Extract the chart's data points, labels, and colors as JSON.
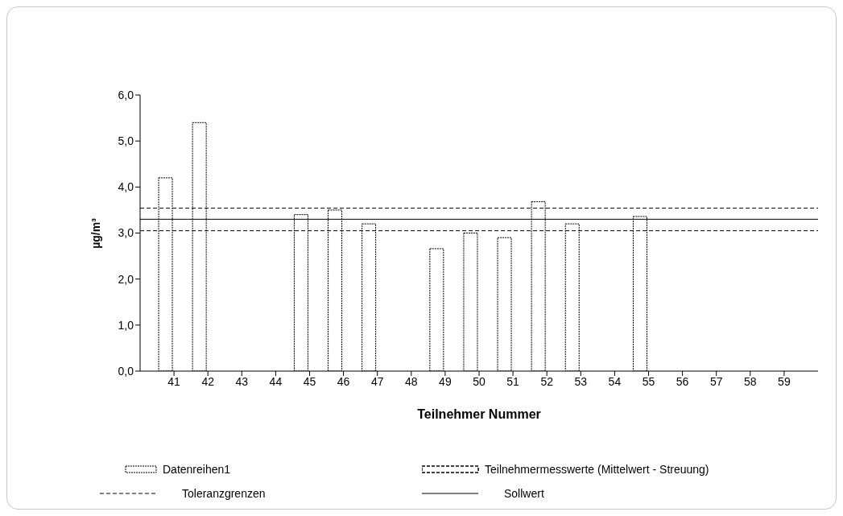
{
  "chart_data": {
    "type": "bar",
    "xlabel": "Teilnehmer Nummer",
    "ylabel": "µg/m³",
    "categories": [
      "41",
      "42",
      "43",
      "44",
      "45",
      "46",
      "47",
      "48",
      "49",
      "50",
      "51",
      "52",
      "53",
      "54",
      "55",
      "56",
      "57",
      "58",
      "59"
    ],
    "series": [
      {
        "name": "Datenreihen1",
        "color": "#000000",
        "values": [
          4.2,
          5.4,
          null,
          null,
          3.4,
          3.5,
          3.2,
          null,
          2.66,
          3.0,
          2.9,
          3.68,
          3.2,
          null,
          3.36,
          null,
          null,
          null,
          null
        ]
      },
      {
        "name": "Teilnehmermesswerte (Mittelwert - Streuung)",
        "color": "#000000",
        "values": [
          null,
          null,
          null,
          null,
          null,
          null,
          null,
          null,
          null,
          null,
          null,
          null,
          null,
          null,
          null,
          null,
          null,
          null,
          null
        ]
      }
    ],
    "ylim": [
      0,
      6
    ],
    "yticks": [
      {
        "value": 0,
        "label": "0,0"
      },
      {
        "value": 1,
        "label": "1,0"
      },
      {
        "value": 2,
        "label": "2,0"
      },
      {
        "value": 3,
        "label": "3,0"
      },
      {
        "value": 4,
        "label": "4,0"
      },
      {
        "value": 5,
        "label": "5,0"
      },
      {
        "value": 6,
        "label": "6,0"
      }
    ],
    "ref_lines": [
      {
        "axis": "y",
        "value": 3.54,
        "label": "Toleranzgrenzen",
        "color": "#000000",
        "line_style": "dashed"
      },
      {
        "axis": "y",
        "value": 3.05,
        "label": null,
        "color": "#000000",
        "line_style": "dashed"
      },
      {
        "axis": "y",
        "value": 3.3,
        "label": "Sollwert",
        "color": "#000000",
        "line_style": "solid"
      }
    ],
    "grid": false,
    "legend": "bottom"
  }
}
